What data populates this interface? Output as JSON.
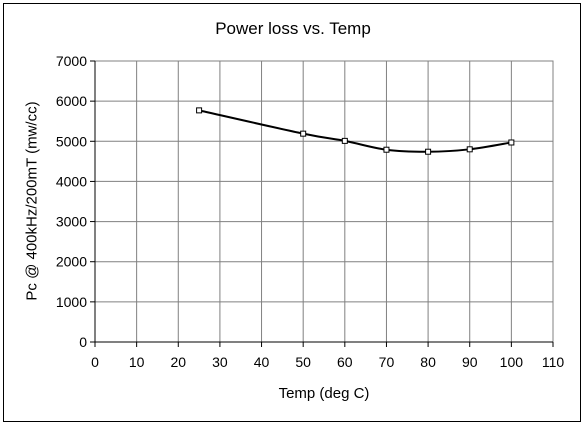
{
  "chart_data": {
    "type": "line",
    "title": "Power loss vs. Temp",
    "xlabel": "Temp (deg C)",
    "ylabel": "Pc @ 400kHz/200mT (mw/cc)",
    "xlim": [
      0,
      110
    ],
    "ylim": [
      0,
      7000
    ],
    "x_ticks": [
      0,
      10,
      20,
      30,
      40,
      50,
      60,
      70,
      80,
      90,
      100,
      110
    ],
    "y_ticks": [
      0,
      1000,
      2000,
      3000,
      4000,
      5000,
      6000,
      7000
    ],
    "grid": true,
    "series": [
      {
        "x": [
          25,
          50,
          60,
          70,
          80,
          90,
          100
        ],
        "y": [
          5770,
          5190,
          5010,
          4790,
          4740,
          4800,
          4970
        ],
        "color": "#000000",
        "marker": "square"
      }
    ]
  }
}
